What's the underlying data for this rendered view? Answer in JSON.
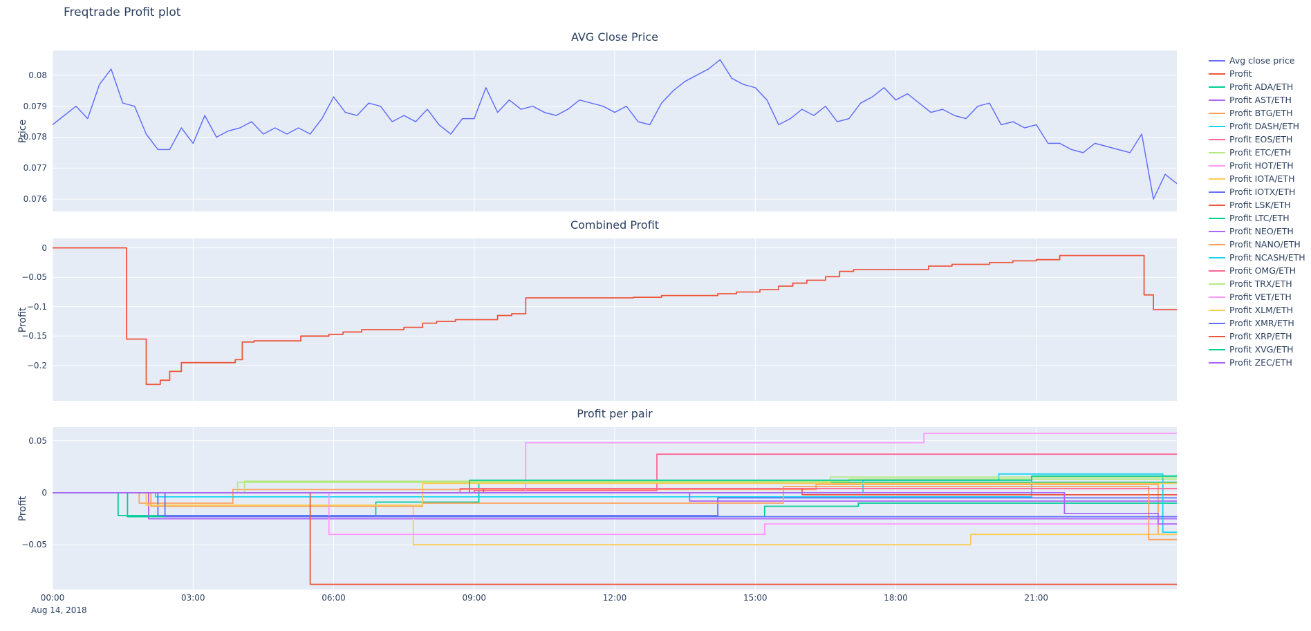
{
  "page": {
    "title": "Freqtrade Profit plot",
    "date_annotation": "Aug 14, 2018",
    "colors": {
      "text": "#2a3f5f",
      "plot_bg": "#e5ecf6",
      "grid": "#ffffff"
    }
  },
  "x_axis": {
    "range": [
      0,
      24
    ],
    "ticks": [
      {
        "value": 0,
        "label": "00:00"
      },
      {
        "value": 3,
        "label": "03:00"
      },
      {
        "value": 6,
        "label": "06:00"
      },
      {
        "value": 9,
        "label": "09:00"
      },
      {
        "value": 12,
        "label": "12:00"
      },
      {
        "value": 15,
        "label": "15:00"
      },
      {
        "value": 18,
        "label": "18:00"
      },
      {
        "value": 21,
        "label": "21:00"
      }
    ]
  },
  "legend": {
    "items": [
      {
        "label": "Avg close price",
        "color": "#636efa"
      },
      {
        "label": "Profit",
        "color": "#ef553b"
      },
      {
        "label": "Profit ADA/ETH",
        "color": "#00cc96"
      },
      {
        "label": "Profit AST/ETH",
        "color": "#ab63fa"
      },
      {
        "label": "Profit BTG/ETH",
        "color": "#ffa15a"
      },
      {
        "label": "Profit DASH/ETH",
        "color": "#19d3f3"
      },
      {
        "label": "Profit EOS/ETH",
        "color": "#ff6692"
      },
      {
        "label": "Profit ETC/ETH",
        "color": "#b6e880"
      },
      {
        "label": "Profit HOT/ETH",
        "color": "#ff97ff"
      },
      {
        "label": "Profit IOTA/ETH",
        "color": "#fecb52"
      },
      {
        "label": "Profit IOTX/ETH",
        "color": "#636efa"
      },
      {
        "label": "Profit LSK/ETH",
        "color": "#ef553b"
      },
      {
        "label": "Profit LTC/ETH",
        "color": "#00cc96"
      },
      {
        "label": "Profit NEO/ETH",
        "color": "#ab63fa"
      },
      {
        "label": "Profit NANO/ETH",
        "color": "#ffa15a"
      },
      {
        "label": "Profit NCASH/ETH",
        "color": "#19d3f3"
      },
      {
        "label": "Profit OMG/ETH",
        "color": "#ff6692"
      },
      {
        "label": "Profit TRX/ETH",
        "color": "#b6e880"
      },
      {
        "label": "Profit VET/ETH",
        "color": "#ff97ff"
      },
      {
        "label": "Profit XLM/ETH",
        "color": "#fecb52"
      },
      {
        "label": "Profit XMR/ETH",
        "color": "#636efa"
      },
      {
        "label": "Profit XRP/ETH",
        "color": "#ef553b"
      },
      {
        "label": "Profit XVG/ETH",
        "color": "#00cc96"
      },
      {
        "label": "Profit ZEC/ETH",
        "color": "#ab63fa"
      }
    ]
  },
  "chart_data": [
    {
      "type": "line",
      "title": "AVG Close Price",
      "ylabel": "Price",
      "xlabel": "",
      "ylim": [
        0.0756,
        0.0808
      ],
      "grid": true,
      "yticks": [
        {
          "value": 0.076,
          "label": "0.076"
        },
        {
          "value": 0.077,
          "label": "0.077"
        },
        {
          "value": 0.078,
          "label": "0.078"
        },
        {
          "value": 0.079,
          "label": "0.079"
        },
        {
          "value": 0.08,
          "label": "0.08"
        }
      ],
      "series": [
        {
          "name": "Avg close price",
          "color": "#636efa",
          "step": false,
          "y": [
            0.0784,
            0.0787,
            0.079,
            0.0786,
            0.0797,
            0.0802,
            0.0791,
            0.079,
            0.0781,
            0.0776,
            0.0776,
            0.0783,
            0.0778,
            0.0787,
            0.078,
            0.0782,
            0.0783,
            0.0785,
            0.0781,
            0.0783,
            0.0781,
            0.0783,
            0.0781,
            0.0786,
            0.0793,
            0.0788,
            0.0787,
            0.0791,
            0.079,
            0.0785,
            0.0787,
            0.0785,
            0.0789,
            0.0784,
            0.0781,
            0.0786,
            0.0786,
            0.0796,
            0.0788,
            0.0792,
            0.0789,
            0.079,
            0.0788,
            0.0787,
            0.0789,
            0.0792,
            0.0791,
            0.079,
            0.0788,
            0.079,
            0.0785,
            0.0784,
            0.0791,
            0.0795,
            0.0798,
            0.08,
            0.0802,
            0.0805,
            0.0799,
            0.0797,
            0.0796,
            0.0792,
            0.0784,
            0.0786,
            0.0789,
            0.0787,
            0.079,
            0.0785,
            0.0786,
            0.0791,
            0.0793,
            0.0796,
            0.0792,
            0.0794,
            0.0791,
            0.0788,
            0.0789,
            0.0787,
            0.0786,
            0.079,
            0.0791,
            0.0784,
            0.0785,
            0.0783,
            0.0784,
            0.0778,
            0.0778,
            0.0776,
            0.0775,
            0.0778,
            0.0777,
            0.0776,
            0.0775,
            0.0781,
            0.076,
            0.0768,
            0.0765
          ]
        }
      ]
    },
    {
      "type": "line",
      "title": "Combined Profit",
      "ylabel": "Profit",
      "xlabel": "",
      "ylim": [
        -0.26,
        0.016
      ],
      "grid": true,
      "yticks": [
        {
          "value": 0,
          "label": "0"
        },
        {
          "value": -0.05,
          "label": "−0.05"
        },
        {
          "value": -0.1,
          "label": "−0.1"
        },
        {
          "value": -0.15,
          "label": "−0.15"
        },
        {
          "value": -0.2,
          "label": "−0.2"
        }
      ],
      "series": [
        {
          "name": "Profit",
          "color": "#ef553b",
          "step": true,
          "points": [
            [
              0,
              0
            ],
            [
              1.58,
              -0.155
            ],
            [
              2.0,
              -0.232
            ],
            [
              2.3,
              -0.225
            ],
            [
              2.5,
              -0.21
            ],
            [
              2.75,
              -0.195
            ],
            [
              3.9,
              -0.19
            ],
            [
              4.05,
              -0.16
            ],
            [
              4.3,
              -0.158
            ],
            [
              5.3,
              -0.15
            ],
            [
              5.9,
              -0.147
            ],
            [
              6.2,
              -0.143
            ],
            [
              6.6,
              -0.139
            ],
            [
              7.5,
              -0.135
            ],
            [
              7.9,
              -0.128
            ],
            [
              8.2,
              -0.125
            ],
            [
              8.6,
              -0.122
            ],
            [
              9.5,
              -0.115
            ],
            [
              9.8,
              -0.112
            ],
            [
              10.1,
              -0.085
            ],
            [
              12.4,
              -0.084
            ],
            [
              13.0,
              -0.081
            ],
            [
              14.2,
              -0.078
            ],
            [
              14.6,
              -0.075
            ],
            [
              15.1,
              -0.071
            ],
            [
              15.5,
              -0.065
            ],
            [
              15.8,
              -0.06
            ],
            [
              16.1,
              -0.055
            ],
            [
              16.5,
              -0.049
            ],
            [
              16.8,
              -0.04
            ],
            [
              17.1,
              -0.037
            ],
            [
              18.7,
              -0.031
            ],
            [
              19.2,
              -0.028
            ],
            [
              20.0,
              -0.025
            ],
            [
              20.5,
              -0.022
            ],
            [
              21.0,
              -0.02
            ],
            [
              21.5,
              -0.013
            ],
            [
              23.3,
              -0.08
            ],
            [
              23.5,
              -0.105
            ],
            [
              24,
              -0.105
            ]
          ]
        }
      ]
    },
    {
      "type": "line",
      "title": "Profit per pair",
      "ylabel": "Profit",
      "xlabel": "",
      "ylim": [
        -0.093,
        0.063
      ],
      "grid": true,
      "yticks": [
        {
          "value": 0.05,
          "label": "0.05"
        },
        {
          "value": 0,
          "label": "0"
        },
        {
          "value": -0.05,
          "label": "−0.05"
        }
      ],
      "series": [
        {
          "name": "Profit ADA/ETH",
          "color": "#00cc96",
          "step": true,
          "points": [
            [
              0,
              0
            ],
            [
              1.4,
              -0.022
            ],
            [
              6.9,
              -0.009
            ],
            [
              9.1,
              0.01
            ],
            [
              24,
              0.01
            ]
          ]
        },
        {
          "name": "Profit AST/ETH",
          "color": "#ab63fa",
          "step": true,
          "points": [
            [
              0,
              0
            ],
            [
              2.05,
              -0.025
            ],
            [
              24,
              -0.025
            ]
          ]
        },
        {
          "name": "Profit BTG/ETH",
          "color": "#ffa15a",
          "step": true,
          "points": [
            [
              0,
              0
            ],
            [
              1.85,
              -0.01
            ],
            [
              3.85,
              0.003
            ],
            [
              16.3,
              0.008
            ],
            [
              23.6,
              -0.04
            ],
            [
              24,
              -0.04
            ]
          ]
        },
        {
          "name": "Profit DASH/ETH",
          "color": "#19d3f3",
          "step": true,
          "points": [
            [
              0,
              0
            ],
            [
              2.2,
              -0.004
            ],
            [
              13.2,
              -0.004
            ],
            [
              20.9,
              0.015
            ],
            [
              24,
              0.015
            ]
          ]
        },
        {
          "name": "Profit EOS/ETH",
          "color": "#ff6692",
          "step": true,
          "points": [
            [
              0,
              0
            ],
            [
              9.0,
              0.002
            ],
            [
              12.9,
              0.037
            ],
            [
              24,
              0.037
            ]
          ]
        },
        {
          "name": "Profit ETC/ETH",
          "color": "#b6e880",
          "step": true,
          "points": [
            [
              0,
              0
            ],
            [
              4.1,
              0.011
            ],
            [
              17.0,
              0.013
            ],
            [
              24,
              0.013
            ]
          ]
        },
        {
          "name": "Profit HOT/ETH",
          "color": "#ff97ff",
          "step": true,
          "points": [
            [
              0,
              0
            ],
            [
              10.1,
              0.048
            ],
            [
              18.6,
              0.057
            ],
            [
              24,
              0.057
            ]
          ]
        },
        {
          "name": "Profit IOTA/ETH",
          "color": "#fecb52",
          "step": true,
          "points": [
            [
              0,
              0
            ],
            [
              2.0,
              -0.012
            ],
            [
              7.7,
              -0.05
            ],
            [
              19.6,
              -0.04
            ],
            [
              24,
              -0.04
            ]
          ]
        },
        {
          "name": "Profit IOTX/ETH",
          "color": "#636efa",
          "step": true,
          "points": [
            [
              0,
              0
            ],
            [
              2.25,
              -0.022
            ],
            [
              14.2,
              -0.005
            ],
            [
              24,
              -0.005
            ]
          ]
        },
        {
          "name": "Profit LSK/ETH",
          "color": "#ef553b",
          "step": true,
          "points": [
            [
              0,
              0
            ],
            [
              9.2,
              0.004
            ],
            [
              16.0,
              -0.002
            ],
            [
              24,
              -0.002
            ]
          ]
        },
        {
          "name": "Profit LTC/ETH",
          "color": "#00cc96",
          "step": true,
          "points": [
            [
              0,
              0
            ],
            [
              1.6,
              -0.023
            ],
            [
              15.2,
              -0.013
            ],
            [
              17.2,
              -0.01
            ],
            [
              24,
              -0.01
            ]
          ]
        },
        {
          "name": "Profit NEO/ETH",
          "color": "#ab63fa",
          "step": true,
          "points": [
            [
              0,
              0
            ],
            [
              13.6,
              -0.008
            ],
            [
              24,
              -0.008
            ]
          ]
        },
        {
          "name": "Profit NANO/ETH",
          "color": "#ffa15a",
          "step": true,
          "points": [
            [
              0,
              0
            ],
            [
              2.1,
              -0.013
            ],
            [
              7.9,
              -0.01
            ],
            [
              15.6,
              0.006
            ],
            [
              23.4,
              -0.045
            ],
            [
              24,
              -0.045
            ]
          ]
        },
        {
          "name": "Profit NCASH/ETH",
          "color": "#19d3f3",
          "step": true,
          "points": [
            [
              0,
              0
            ],
            [
              17.3,
              0.012
            ],
            [
              20.2,
              0.018
            ],
            [
              23.7,
              -0.038
            ],
            [
              24,
              -0.038
            ]
          ]
        },
        {
          "name": "Profit OMG/ETH",
          "color": "#ff6692",
          "step": true,
          "points": [
            [
              0,
              0
            ],
            [
              8.7,
              0.004
            ],
            [
              24,
              0.004
            ]
          ]
        },
        {
          "name": "Profit TRX/ETH",
          "color": "#b6e880",
          "step": true,
          "points": [
            [
              0,
              0
            ],
            [
              3.95,
              0.01
            ],
            [
              16.6,
              0.015
            ],
            [
              24,
              0.015
            ]
          ]
        },
        {
          "name": "Profit VET/ETH",
          "color": "#ff97ff",
          "step": true,
          "points": [
            [
              0,
              0
            ],
            [
              5.9,
              -0.04
            ],
            [
              15.2,
              -0.03
            ],
            [
              24,
              -0.03
            ]
          ]
        },
        {
          "name": "Profit XLM/ETH",
          "color": "#fecb52",
          "step": true,
          "points": [
            [
              0,
              0
            ],
            [
              2.0,
              -0.012
            ],
            [
              7.9,
              0.009
            ],
            [
              24,
              0.009
            ]
          ]
        },
        {
          "name": "Profit XMR/ETH",
          "color": "#636efa",
          "step": true,
          "points": [
            [
              0,
              0
            ],
            [
              2.4,
              -0.023
            ],
            [
              24,
              -0.023
            ]
          ]
        },
        {
          "name": "Profit XRP/ETH",
          "color": "#ef553b",
          "step": true,
          "points": [
            [
              0,
              0
            ],
            [
              5.5,
              -0.088
            ],
            [
              24,
              -0.088
            ]
          ]
        },
        {
          "name": "Profit XVG/ETH",
          "color": "#00cc96",
          "step": true,
          "points": [
            [
              0,
              0
            ],
            [
              8.9,
              0.012
            ],
            [
              20.9,
              0.016
            ],
            [
              24,
              0.016
            ]
          ]
        },
        {
          "name": "Profit ZEC/ETH",
          "color": "#ab63fa",
          "step": true,
          "points": [
            [
              0,
              0
            ],
            [
              21.6,
              -0.02
            ],
            [
              23.6,
              -0.03
            ],
            [
              24,
              -0.03
            ]
          ]
        }
      ]
    }
  ]
}
